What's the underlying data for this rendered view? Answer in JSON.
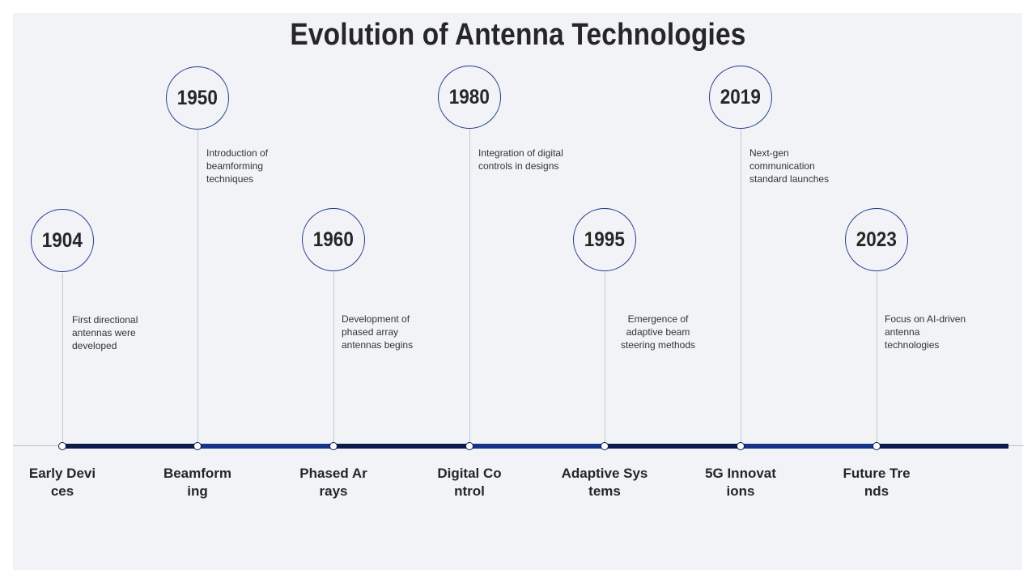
{
  "title": "Evolution of Antenna Technologies",
  "colors": {
    "segment_dark": "#0c1c4a",
    "segment_blue": "#163489",
    "circle_border": "#1f3a8a",
    "background": "#f1f3f7"
  },
  "milestones": [
    {
      "year": "1904",
      "description": "First directional antennas were developed",
      "label": "Early Devices"
    },
    {
      "year": "1950",
      "description": "Introduction of beamforming techniques",
      "label": "Beamforming"
    },
    {
      "year": "1960",
      "description": "Development of phased array antennas begins",
      "label": "Phased Arrays"
    },
    {
      "year": "1980",
      "description": "Integration of digital controls in designs",
      "label": "Digital Control"
    },
    {
      "year": "1995",
      "description": "Emergence of adaptive beam steering methods",
      "label": "Adaptive Systems"
    },
    {
      "year": "2019",
      "description": "Next-gen communication standard launches",
      "label": "5G Innovations"
    },
    {
      "year": "2023",
      "description": "Focus on AI-driven antenna technologies",
      "label": "Future Trends"
    }
  ]
}
